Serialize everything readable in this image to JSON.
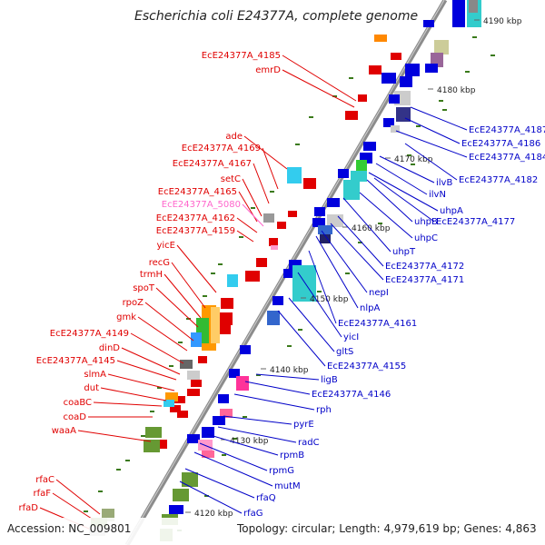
{
  "title": "Escherichia coli E24377A, complete genome",
  "footer": {
    "accession": "Accession: NC_009801",
    "topology": "Topology: circular; Length: 4,979,619 bp; Genes: 4,863"
  },
  "colors": {
    "backbone": "#8c8c8c",
    "reverse_strand_label": "#e00000",
    "forward_strand_label": "#0000c8",
    "pseudo_label": "#ff66cc",
    "gc_marker": "#3a7a1a"
  },
  "kbp_ticks": [
    "4190 kbp",
    "4180 kbp",
    "4170 kbp",
    "4160 kbp",
    "4150 kbp",
    "4140 kbp",
    "4130 kbp",
    "4120 kbp"
  ],
  "left_labels": [
    {
      "text": "EcE24377A_4185",
      "color": "#e00000"
    },
    {
      "text": "emrD",
      "color": "#e00000"
    },
    {
      "text": "ade",
      "color": "#e00000"
    },
    {
      "text": "EcE24377A_4169",
      "color": "#e00000"
    },
    {
      "text": "EcE24377A_4167",
      "color": "#e00000"
    },
    {
      "text": "setC",
      "color": "#e00000"
    },
    {
      "text": "EcE24377A_4165",
      "color": "#e00000"
    },
    {
      "text": "EcE24377A_5080",
      "color": "#ff66cc"
    },
    {
      "text": "EcE24377A_4162",
      "color": "#e00000"
    },
    {
      "text": "EcE24377A_4159",
      "color": "#e00000"
    },
    {
      "text": "yicE",
      "color": "#e00000"
    },
    {
      "text": "recG",
      "color": "#e00000"
    },
    {
      "text": "trmH",
      "color": "#e00000"
    },
    {
      "text": "spoT",
      "color": "#e00000"
    },
    {
      "text": "rpoZ",
      "color": "#e00000"
    },
    {
      "text": "gmk",
      "color": "#e00000"
    },
    {
      "text": "EcE24377A_4149",
      "color": "#e00000"
    },
    {
      "text": "dinD",
      "color": "#e00000"
    },
    {
      "text": "EcE24377A_4145",
      "color": "#e00000"
    },
    {
      "text": "slmA",
      "color": "#e00000"
    },
    {
      "text": "dut",
      "color": "#e00000"
    },
    {
      "text": "coaBC",
      "color": "#e00000"
    },
    {
      "text": "coaD",
      "color": "#e00000"
    },
    {
      "text": "waaA",
      "color": "#e00000"
    },
    {
      "text": "rfaC",
      "color": "#e00000"
    },
    {
      "text": "rfaF",
      "color": "#e00000"
    },
    {
      "text": "rfaD",
      "color": "#e00000"
    }
  ],
  "right_labels": [
    {
      "text": "EcE24377A_4187"
    },
    {
      "text": "EcE24377A_4186"
    },
    {
      "text": "EcE24377A_4184"
    },
    {
      "text": "EcE24377A_4182"
    },
    {
      "text": "ilvB"
    },
    {
      "text": "ilvN"
    },
    {
      "text": "uhpA"
    },
    {
      "text": "uhpB"
    },
    {
      "text": "EcE24377A_4177"
    },
    {
      "text": "uhpC"
    },
    {
      "text": "uhpT"
    },
    {
      "text": "EcE24377A_4172"
    },
    {
      "text": "EcE24377A_4171"
    },
    {
      "text": "nepI"
    },
    {
      "text": "nlpA"
    },
    {
      "text": "EcE24377A_4161"
    },
    {
      "text": "yicI"
    },
    {
      "text": "gltS"
    },
    {
      "text": "EcE24377A_4155"
    },
    {
      "text": "ligB"
    },
    {
      "text": "EcE24377A_4146"
    },
    {
      "text": "rph"
    },
    {
      "text": "pyrE"
    },
    {
      "text": "radC"
    },
    {
      "text": "rpmB"
    },
    {
      "text": "rpmG"
    },
    {
      "text": "mutM"
    },
    {
      "text": "rfaQ"
    },
    {
      "text": "rfaG"
    }
  ]
}
